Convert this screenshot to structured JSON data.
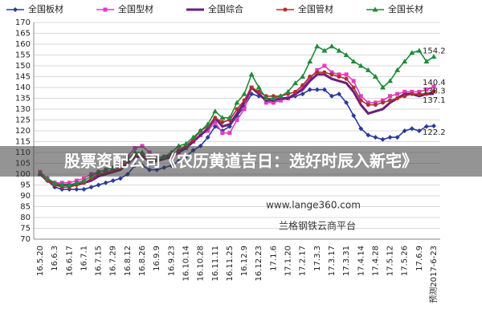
{
  "chart_data": {
    "type": "line",
    "categories": [
      "16.5.20",
      null,
      "16.6.3",
      null,
      "16.6.17",
      null,
      "16.7.1",
      null,
      "16.7.15",
      null,
      "16.7.29",
      null,
      "16.8.12",
      null,
      "16.8.26",
      null,
      "16.9.9",
      null,
      "16.9.23",
      null,
      "16.10.14",
      null,
      "16.10.28",
      null,
      "16.11.11",
      null,
      "16.11.25",
      null,
      "16.12.9",
      null,
      "16.12.23",
      null,
      "17.1.6",
      null,
      "17.1.20",
      null,
      "17.2.17",
      null,
      "17.3.3",
      null,
      "17.3.17",
      null,
      "17.3.31",
      null,
      "17.4.14",
      null,
      "17.4.28",
      null,
      "17.5.12",
      null,
      "17.5.26",
      null,
      "17.6.9",
      null,
      "预测2017-6-23"
    ],
    "series": [
      {
        "name": "全国板材",
        "color": "#2b3a9c",
        "marker": "diamond",
        "values": [
          100,
          97,
          94,
          93,
          93,
          93,
          93,
          94,
          95,
          96,
          97,
          98,
          100,
          104,
          104,
          102,
          102,
          103,
          104,
          106,
          108,
          111,
          113,
          117,
          122,
          120,
          122,
          127,
          131,
          137,
          136,
          135,
          134,
          135,
          135,
          136,
          137,
          139,
          139,
          139,
          136,
          137,
          133,
          127,
          121,
          118,
          117,
          116,
          117,
          117,
          120,
          121,
          120,
          122,
          122.2
        ]
      },
      {
        "name": "全国型材",
        "color": "#e23cc4",
        "marker": "square",
        "values": [
          101,
          98,
          96,
          96,
          96,
          97,
          98,
          100,
          101,
          102,
          103,
          105,
          108,
          112,
          113,
          110,
          108,
          108,
          108,
          110,
          112,
          115,
          118,
          120,
          124,
          119,
          119,
          125,
          130,
          140,
          138,
          133,
          133,
          134,
          135,
          137,
          140,
          144,
          148,
          150,
          147,
          146,
          146,
          143,
          136,
          133,
          133,
          134,
          136,
          137,
          138,
          138,
          138,
          139,
          140.4
        ]
      },
      {
        "name": "全国综合",
        "color": "#6b1f7c",
        "marker": "none",
        "values": [
          100,
          97,
          95,
          95,
          95,
          95,
          96,
          97,
          99,
          100,
          101,
          102,
          105,
          108,
          108,
          106,
          106,
          107,
          108,
          110,
          112,
          115,
          118,
          121,
          126,
          122,
          123,
          128,
          133,
          140,
          137,
          134,
          134,
          135,
          135,
          137,
          139,
          143,
          146,
          146,
          144,
          143,
          142,
          138,
          132,
          128,
          129,
          130,
          133,
          135,
          137,
          137,
          136,
          137,
          137.1
        ]
      },
      {
        "name": "全国管材",
        "color": "#b0302c",
        "marker": "circle",
        "values": [
          100,
          97,
          95,
          94,
          94,
          95,
          96,
          98,
          100,
          101,
          102,
          103,
          106,
          109,
          109,
          107,
          107,
          108,
          109,
          111,
          113,
          116,
          120,
          122,
          126,
          124,
          125,
          130,
          134,
          140,
          138,
          136,
          136,
          136,
          137,
          138,
          141,
          145,
          147,
          147,
          146,
          145,
          144,
          140,
          134,
          132,
          132,
          133,
          134,
          135,
          136,
          137,
          137,
          137,
          138.3
        ]
      },
      {
        "name": "全国长材",
        "color": "#1f8b3b",
        "marker": "triangle",
        "values": [
          100,
          98,
          96,
          95,
          95,
          96,
          97,
          99,
          101,
          102,
          103,
          104,
          107,
          110,
          110,
          108,
          107,
          108,
          110,
          113,
          114,
          117,
          120,
          123,
          129,
          126,
          126,
          133,
          137,
          146,
          140,
          135,
          135,
          136,
          138,
          142,
          145,
          152,
          159,
          157,
          159,
          157,
          155,
          152,
          150,
          148,
          145,
          140,
          143,
          148,
          152,
          156,
          157,
          152,
          154.2
        ]
      }
    ],
    "ylim": [
      70,
      170
    ],
    "yticks": [
      70,
      75,
      80,
      85,
      90,
      95,
      100,
      105,
      110,
      115,
      120,
      125,
      130,
      135,
      140,
      145,
      150,
      155,
      160,
      165,
      170
    ],
    "grid": true,
    "annotations": [
      "www.lange360.com",
      "兰格钢铁云商平台"
    ],
    "banner": "股票资配公司《农历黄道吉日：选好时辰入新宅》"
  }
}
